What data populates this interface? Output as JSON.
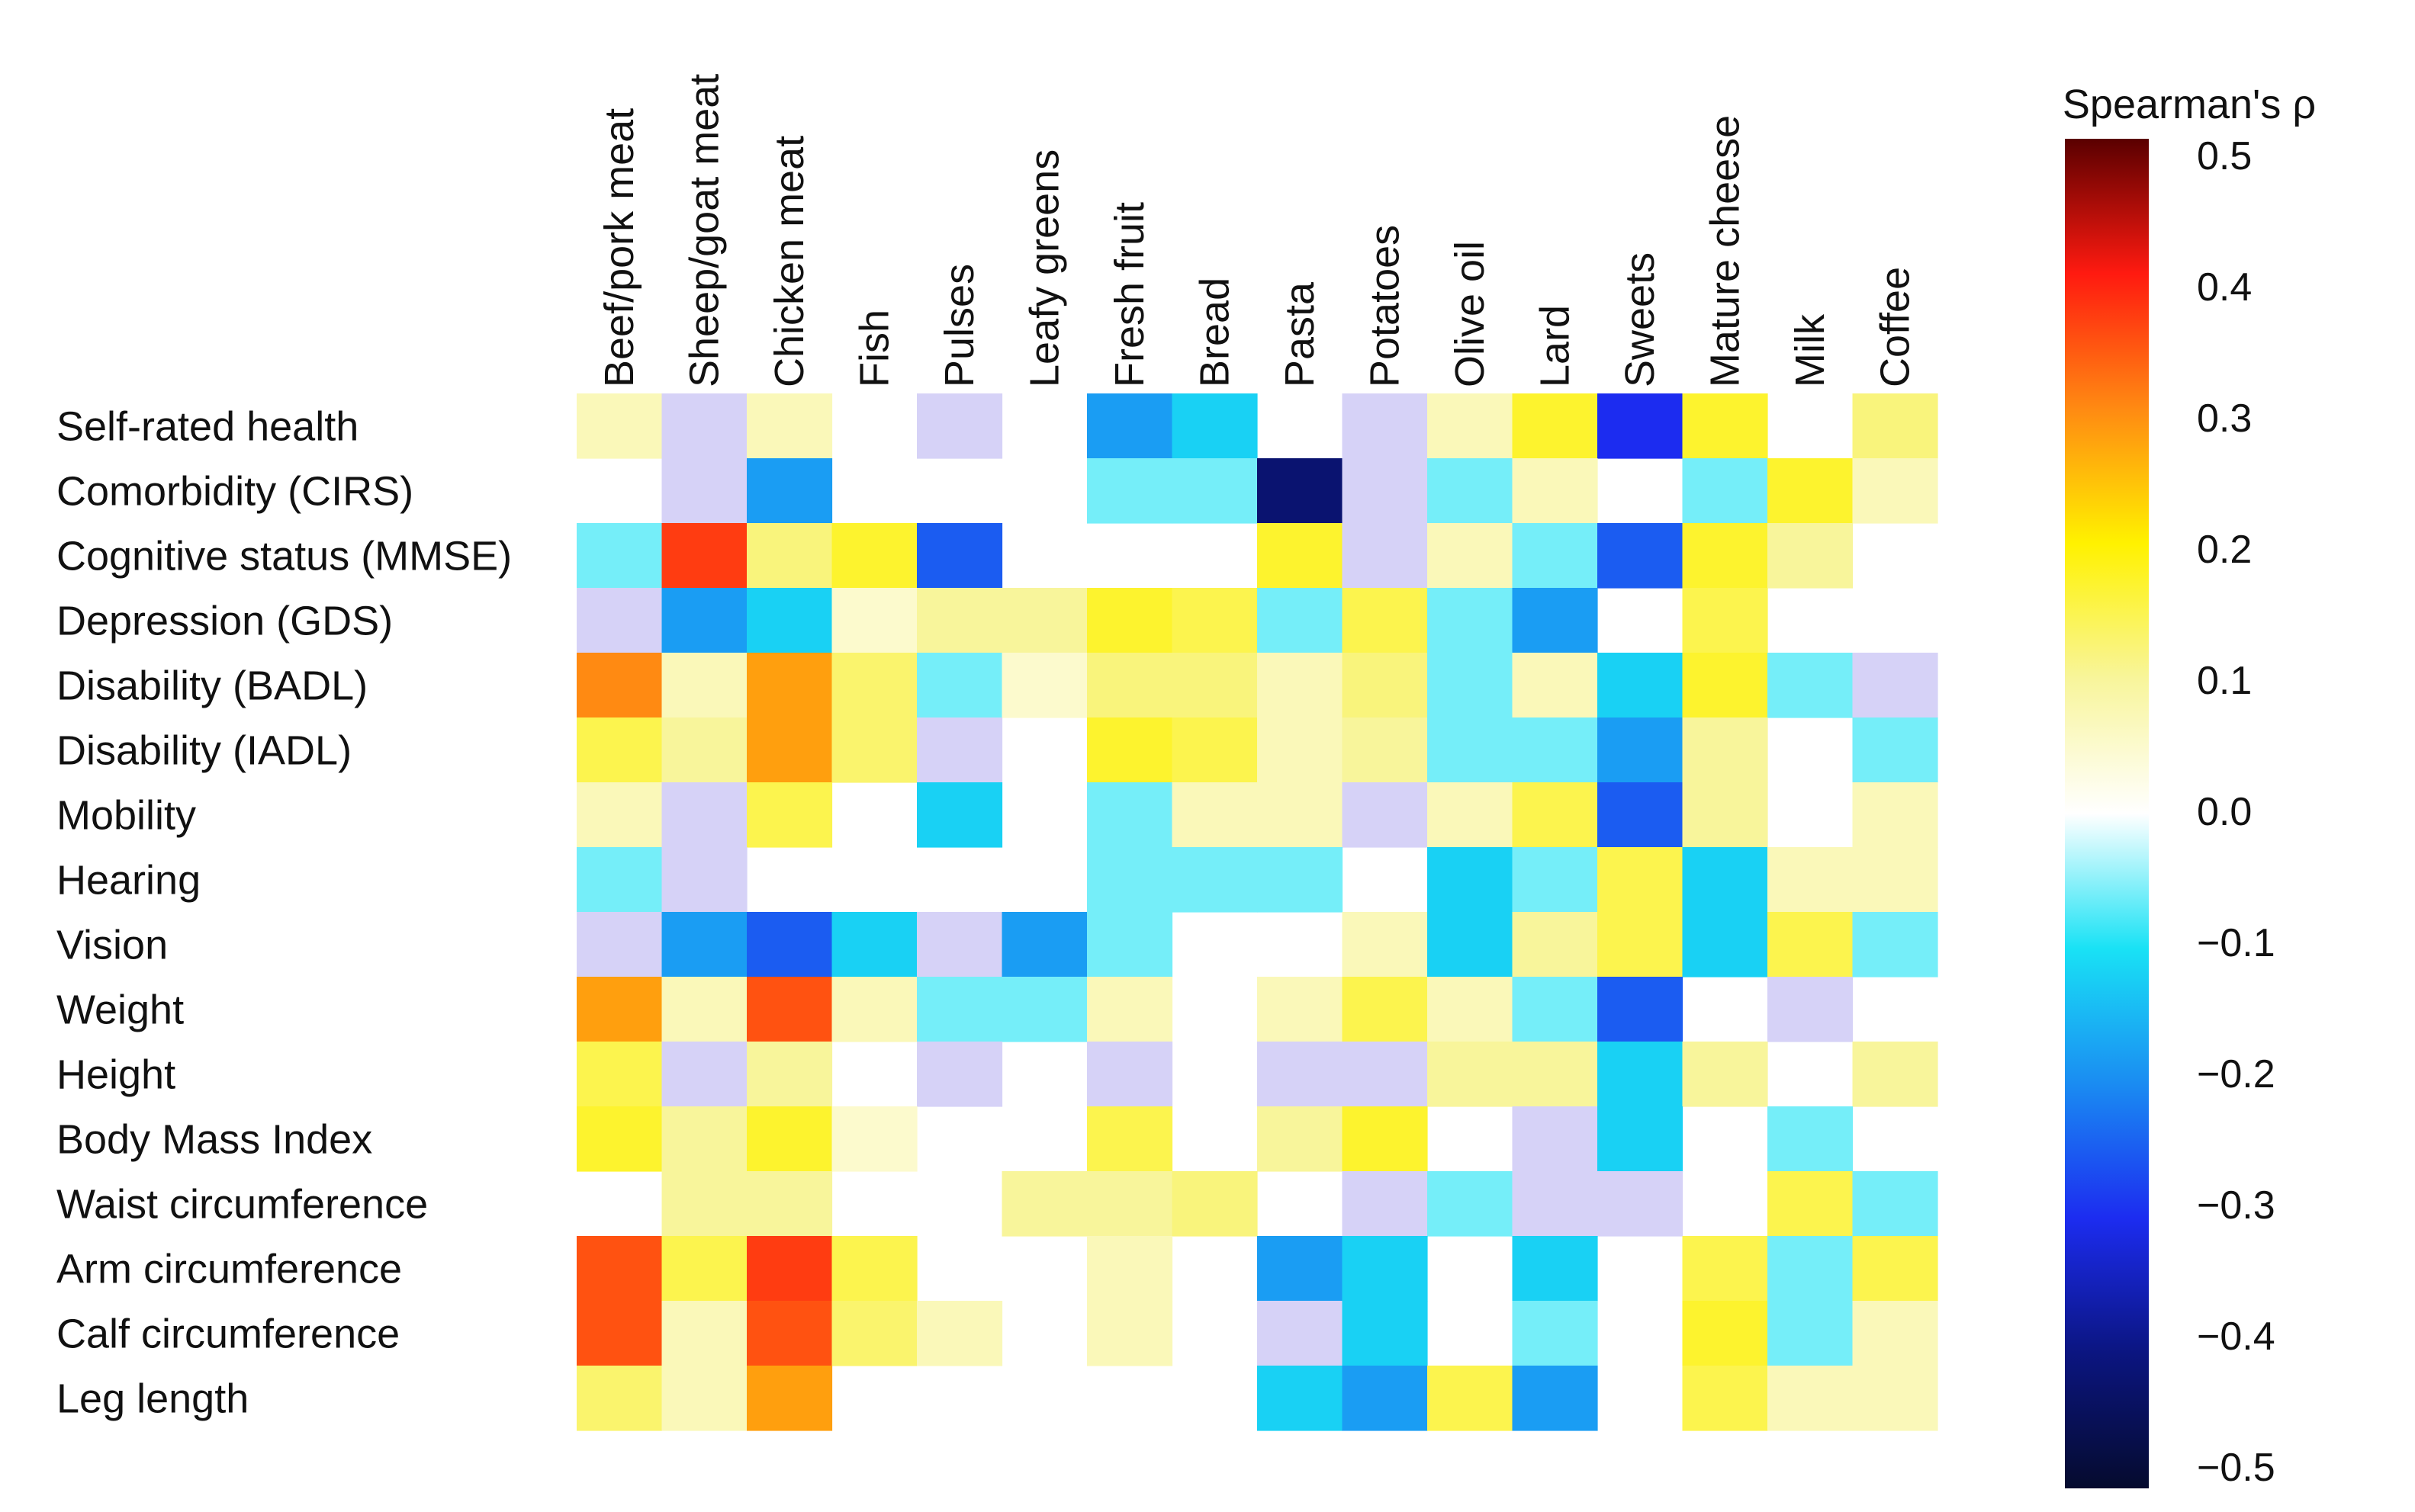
{
  "chart_data": {
    "type": "heatmap",
    "columns": [
      "Beef/pork meat",
      "Sheep/goat meat",
      "Chicken meat",
      "Fish",
      "Pulses",
      "Leafy greens",
      "Fresh fruit",
      "Bread",
      "Pasta",
      "Potatoes",
      "Olive oil",
      "Lard",
      "Sweets",
      "Mature cheese",
      "Milk",
      "Coffee"
    ],
    "rows": [
      "Self-rated health",
      "Comorbidity (CIRS)",
      "Cognitive status (MMSE)",
      "Depression (GDS)",
      "Disability (BADL)",
      "Disability (IADL)",
      "Mobility",
      "Hearing",
      "Vision",
      "Weight",
      "Height",
      "Body Mass Index",
      "Waist circumference",
      "Arm circumference",
      "Calf circumference",
      "Leg length"
    ],
    "values": [
      [
        0.07,
        "na",
        0.07,
        null,
        "na",
        null,
        -0.18,
        -0.12,
        null,
        "na",
        0.07,
        0.17,
        -0.3,
        0.17,
        null,
        0.12
      ],
      [
        null,
        "na",
        -0.18,
        null,
        null,
        null,
        -0.06,
        -0.06,
        -0.42,
        "na",
        -0.06,
        0.07,
        null,
        -0.06,
        0.17,
        0.07
      ],
      [
        -0.06,
        0.37,
        0.12,
        0.17,
        -0.25,
        null,
        null,
        null,
        0.17,
        "na",
        0.07,
        -0.06,
        -0.25,
        0.17,
        0.1,
        null
      ],
      [
        "na",
        -0.18,
        -0.12,
        0.05,
        0.1,
        0.1,
        0.17,
        0.15,
        -0.06,
        0.15,
        -0.06,
        -0.18,
        null,
        0.15,
        null,
        null
      ],
      [
        0.3,
        0.07,
        0.28,
        0.13,
        -0.06,
        0.05,
        0.12,
        0.12,
        0.07,
        0.12,
        -0.06,
        0.07,
        -0.12,
        0.17,
        -0.06,
        "na"
      ],
      [
        0.15,
        0.1,
        0.28,
        0.13,
        "na",
        null,
        0.17,
        0.15,
        0.07,
        0.1,
        -0.06,
        -0.06,
        -0.18,
        0.1,
        null,
        -0.06
      ],
      [
        0.07,
        "na",
        0.15,
        null,
        -0.12,
        null,
        -0.06,
        0.07,
        0.07,
        "na",
        0.07,
        0.15,
        -0.25,
        0.1,
        null,
        0.07
      ],
      [
        -0.06,
        "na",
        null,
        null,
        null,
        null,
        -0.06,
        -0.06,
        -0.06,
        null,
        -0.12,
        -0.06,
        0.15,
        -0.12,
        0.07,
        0.07
      ],
      [
        "na",
        -0.18,
        -0.25,
        -0.12,
        "na",
        -0.18,
        -0.06,
        null,
        null,
        0.07,
        -0.12,
        0.1,
        0.15,
        -0.12,
        0.15,
        -0.06
      ],
      [
        0.28,
        0.07,
        0.35,
        0.07,
        -0.06,
        -0.06,
        0.07,
        null,
        0.07,
        0.15,
        0.07,
        -0.06,
        -0.25,
        null,
        "na",
        null
      ],
      [
        0.15,
        "na",
        0.1,
        null,
        "na",
        null,
        "na",
        null,
        "na",
        "na",
        0.1,
        0.1,
        -0.12,
        0.1,
        null,
        0.1
      ],
      [
        0.17,
        0.1,
        0.17,
        0.05,
        null,
        null,
        0.15,
        null,
        0.1,
        0.17,
        null,
        "na",
        -0.12,
        null,
        -0.06,
        null
      ],
      [
        null,
        0.1,
        0.1,
        null,
        null,
        0.1,
        0.1,
        0.12,
        null,
        "na",
        -0.06,
        "na",
        "na",
        null,
        0.15,
        -0.06
      ],
      [
        0.35,
        0.15,
        0.37,
        0.15,
        null,
        null,
        0.07,
        null,
        -0.18,
        -0.12,
        null,
        -0.12,
        null,
        0.15,
        -0.06,
        0.15
      ],
      [
        0.35,
        0.07,
        0.35,
        0.13,
        0.07,
        null,
        0.07,
        null,
        "na",
        -0.12,
        null,
        -0.06,
        null,
        0.17,
        -0.06,
        0.07
      ],
      [
        0.13,
        0.07,
        0.28,
        null,
        null,
        null,
        null,
        null,
        -0.12,
        -0.18,
        0.15,
        -0.18,
        null,
        0.15,
        0.07,
        0.07
      ]
    ],
    "legend_note": "na = cell drawn in pale lavender (value not estimable from colorscale); null = empty (white) cell",
    "colorbar": {
      "label": "Spearman's ρ",
      "ticks": [
        "0.5",
        "0.4",
        "0.3",
        "0.2",
        "0.1",
        "0.0",
        "−0.1",
        "−0.2",
        "−0.3",
        "−0.4",
        "−0.5"
      ],
      "range": [
        -0.5,
        0.5
      ]
    }
  }
}
